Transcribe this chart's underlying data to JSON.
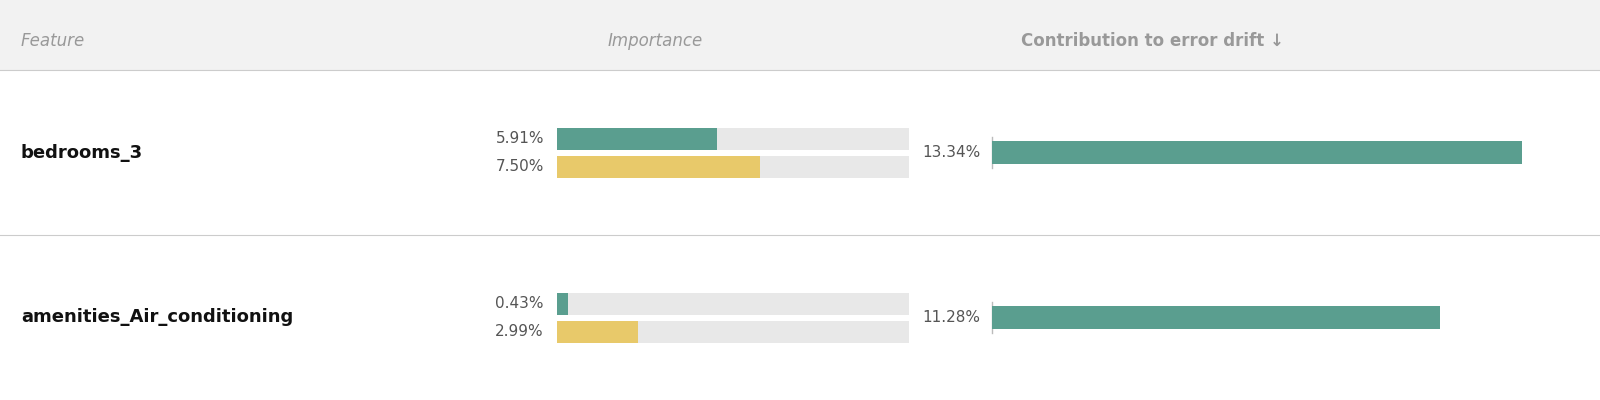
{
  "features": [
    "bedrooms_3",
    "amenities_Air_conditioning"
  ],
  "row1_teal_pct": 5.91,
  "row1_yellow_pct": 7.5,
  "row1_drift_pct": 13.34,
  "row2_teal_pct": 0.43,
  "row2_yellow_pct": 2.99,
  "row2_drift_pct": 11.28,
  "importance_max": 13.0,
  "drift_max": 14.5,
  "color_teal": "#5a9e8f",
  "color_yellow": "#e8c96a",
  "color_bg_bar": "#e8e8e8",
  "color_header_bg": "#f2f2f2",
  "color_divider": "#cccccc",
  "color_feature_text": "#111111",
  "color_header_text": "#999999",
  "color_pct_text": "#555555",
  "header_feature": "Feature",
  "header_importance": "Importance",
  "header_drift": "Contribution to error drift ↓",
  "background": "#ffffff"
}
